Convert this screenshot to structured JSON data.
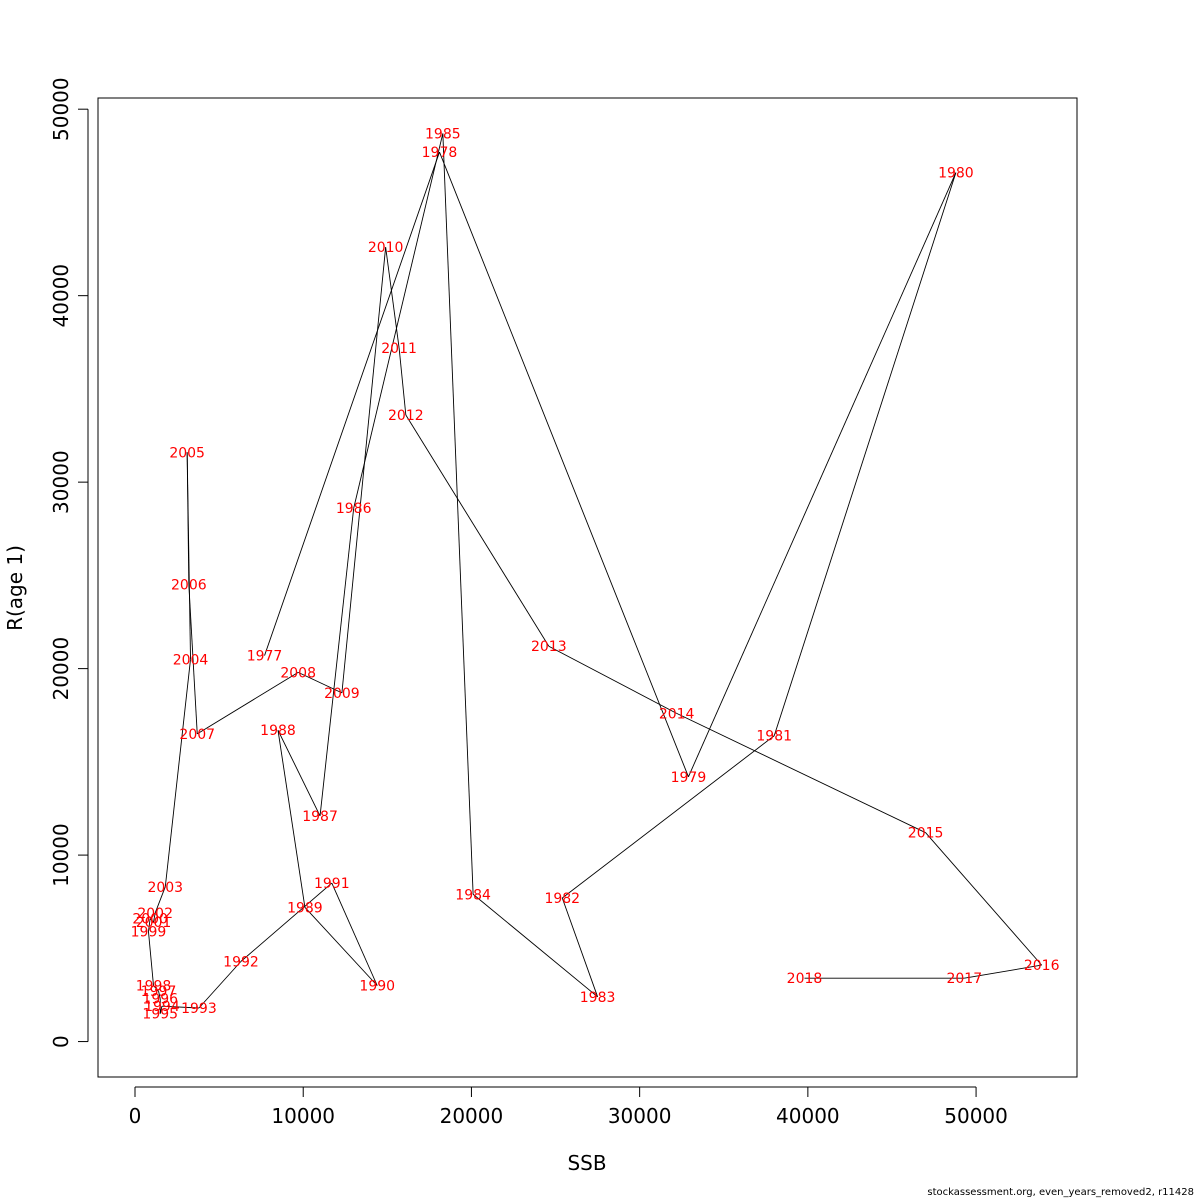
{
  "chart_data": {
    "type": "line",
    "title": "",
    "xlabel": "SSB",
    "ylabel": "R(age 1)",
    "xlim": [
      -2200,
      56000
    ],
    "ylim": [
      -1900,
      50600
    ],
    "xticks": [
      0,
      10000,
      20000,
      30000,
      40000,
      50000
    ],
    "yticks": [
      0,
      10000,
      20000,
      30000,
      40000,
      50000
    ],
    "xtick_labels": [
      "0",
      "10000",
      "20000",
      "30000",
      "40000",
      "50000"
    ],
    "ytick_labels": [
      "0",
      "10000",
      "20000",
      "30000",
      "40000",
      "50000"
    ],
    "grid": false,
    "line_color": "#000000",
    "label_color": "#ff0000",
    "points": [
      {
        "year": "1977",
        "x": 7700,
        "y": 20700
      },
      {
        "year": "1978",
        "x": 18100,
        "y": 47700
      },
      {
        "year": "1979",
        "x": 32900,
        "y": 14200
      },
      {
        "year": "1980",
        "x": 48800,
        "y": 46600
      },
      {
        "year": "1981",
        "x": 38000,
        "y": 16400
      },
      {
        "year": "1982",
        "x": 25400,
        "y": 7700
      },
      {
        "year": "1983",
        "x": 27500,
        "y": 2400
      },
      {
        "year": "1984",
        "x": 20100,
        "y": 7900
      },
      {
        "year": "1985",
        "x": 18300,
        "y": 48700
      },
      {
        "year": "1986",
        "x": 13000,
        "y": 28600
      },
      {
        "year": "1987",
        "x": 11000,
        "y": 12100
      },
      {
        "year": "1988",
        "x": 8500,
        "y": 16700
      },
      {
        "year": "1989",
        "x": 10100,
        "y": 7200
      },
      {
        "year": "1990",
        "x": 14400,
        "y": 3000
      },
      {
        "year": "1991",
        "x": 11700,
        "y": 8500
      },
      {
        "year": "1992",
        "x": 6300,
        "y": 4300
      },
      {
        "year": "1993",
        "x": 3800,
        "y": 1800
      },
      {
        "year": "1994",
        "x": 1600,
        "y": 1900
      },
      {
        "year": "1995",
        "x": 1500,
        "y": 1500
      },
      {
        "year": "1996",
        "x": 1500,
        "y": 2300
      },
      {
        "year": "1997",
        "x": 1400,
        "y": 2700
      },
      {
        "year": "1998",
        "x": 1100,
        "y": 3000
      },
      {
        "year": "1999",
        "x": 800,
        "y": 5900
      },
      {
        "year": "2000",
        "x": 900,
        "y": 6600
      },
      {
        "year": "2001",
        "x": 1100,
        "y": 6400
      },
      {
        "year": "2002",
        "x": 1200,
        "y": 6900
      },
      {
        "year": "2003",
        "x": 1800,
        "y": 8300
      },
      {
        "year": "2004",
        "x": 3300,
        "y": 20500
      },
      {
        "year": "2005",
        "x": 3100,
        "y": 31600
      },
      {
        "year": "2006",
        "x": 3200,
        "y": 24500
      },
      {
        "year": "2007",
        "x": 3700,
        "y": 16500
      },
      {
        "year": "2008",
        "x": 9700,
        "y": 19800
      },
      {
        "year": "2009",
        "x": 12300,
        "y": 18700
      },
      {
        "year": "2010",
        "x": 14900,
        "y": 42600
      },
      {
        "year": "2011",
        "x": 15700,
        "y": 37200
      },
      {
        "year": "2012",
        "x": 16100,
        "y": 33600
      },
      {
        "year": "2013",
        "x": 24600,
        "y": 21200
      },
      {
        "year": "2014",
        "x": 32200,
        "y": 17600
      },
      {
        "year": "2015",
        "x": 47000,
        "y": 11200
      },
      {
        "year": "2016",
        "x": 53900,
        "y": 4100
      },
      {
        "year": "2017",
        "x": 49300,
        "y": 3400
      },
      {
        "year": "2018",
        "x": 39800,
        "y": 3400
      }
    ]
  },
  "footer": "stockassessment.org, even_years_removed2, r11428"
}
